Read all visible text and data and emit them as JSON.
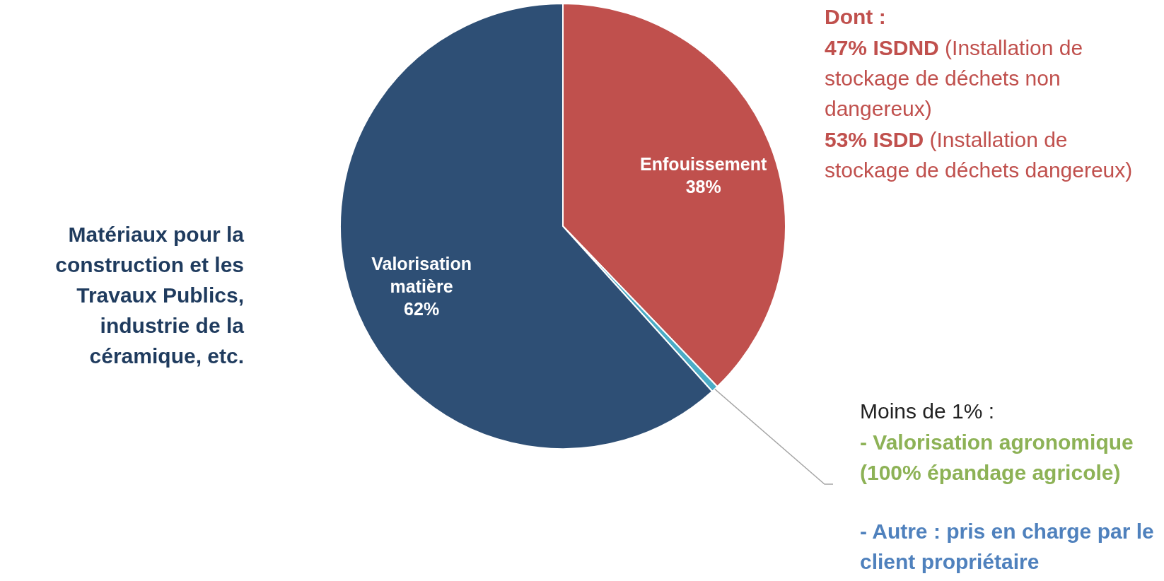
{
  "chart_data": {
    "type": "pie",
    "categories": [
      "Enfouissement",
      null,
      "Valorisation matière"
    ],
    "values": [
      38,
      0.5,
      62
    ],
    "value_labels": [
      "38%",
      null,
      "62%"
    ],
    "colors": [
      "#c0504d",
      "#4bacc6",
      "#2e4f75"
    ],
    "annotations": [
      "Matériaux pour la construction et les Travaux Publics, industrie de la céramique, etc.",
      "Dont :",
      "47% ISDND (Installation de stockage de déchets non dangereux)",
      "53% ISDD (Installation de stockage de déchets dangereux)",
      "Moins de 1% :",
      "- Valorisation agronomique (100% épandage agricole)",
      "- Autre : pris en charge par le client propriétaire"
    ],
    "legend": false
  }
}
